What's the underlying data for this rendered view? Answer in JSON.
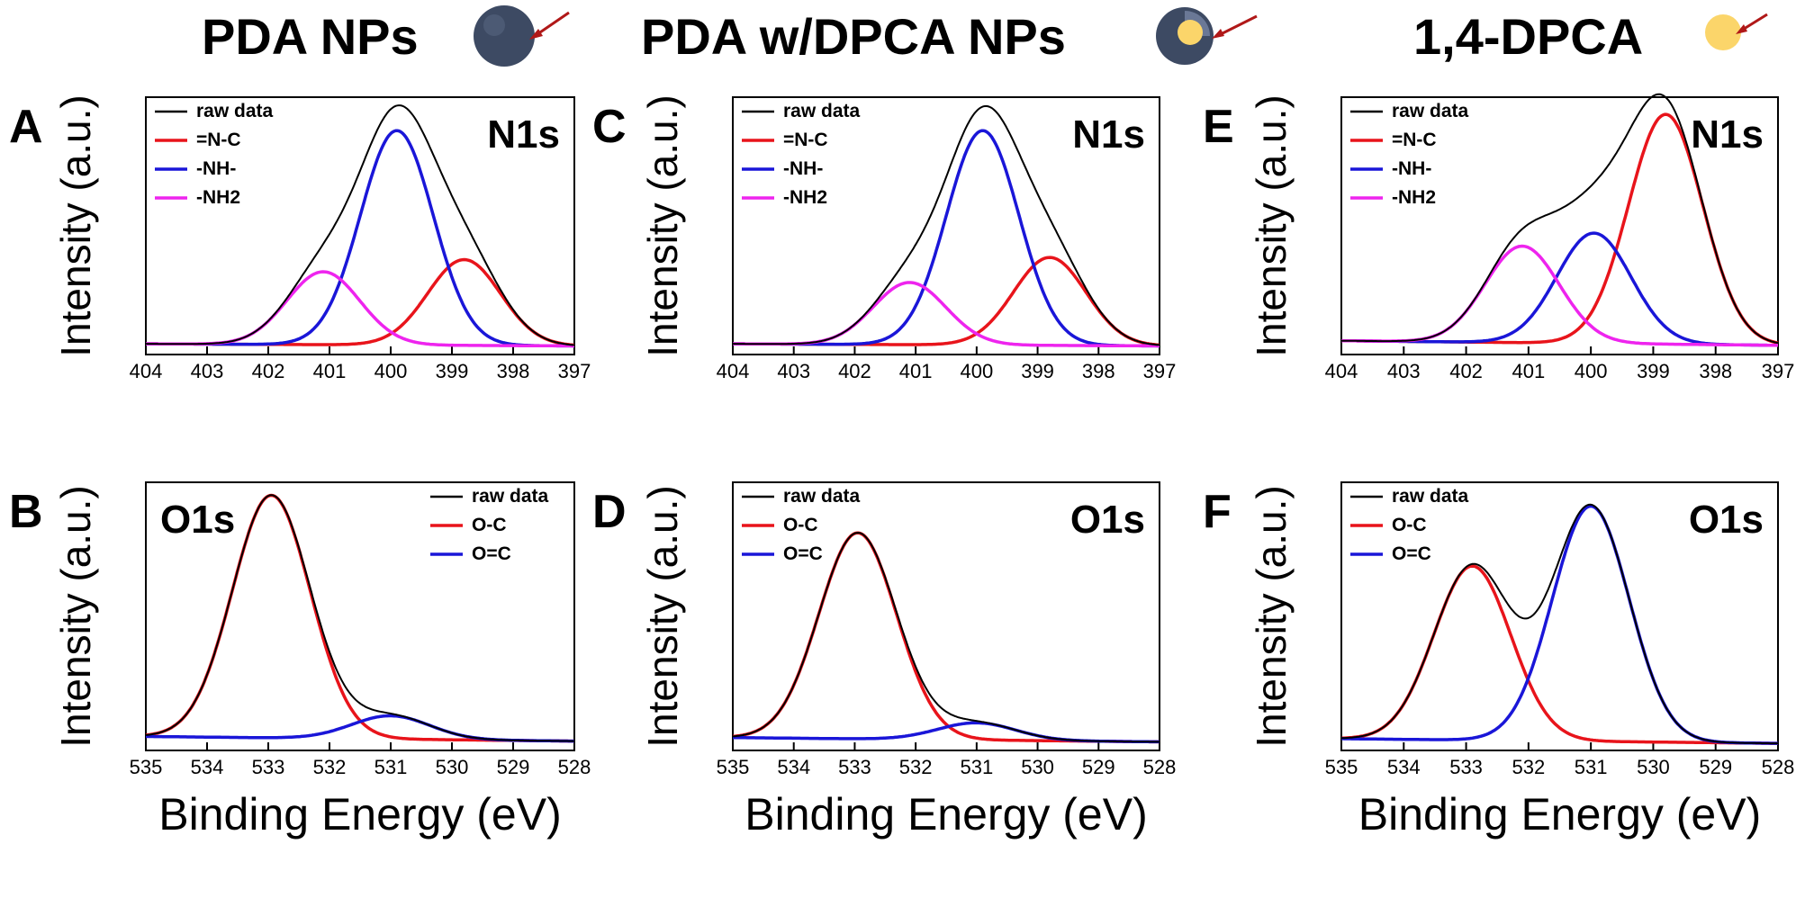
{
  "header": [
    {
      "label": "PDA NPs",
      "icon": "dark-sphere-icon"
    },
    {
      "label": "PDA w/DPCA NPs",
      "icon": "core-shell-sphere-icon"
    },
    {
      "label": "1,4-DPCA",
      "icon": "yellow-sphere-icon"
    }
  ],
  "colors": {
    "raw": "#000000",
    "red": "#e8141b",
    "blue": "#1a16d8",
    "magenta": "#ee24ee",
    "dark_sphere": "#3d4a63",
    "yellow_sphere": "#fbd56a",
    "arrow": "#b01818"
  },
  "chart_data": [
    {
      "panel": "A",
      "type": "line",
      "title": "N1s",
      "xlabel": "",
      "ylabel": "Intensity (a.u.)",
      "xlim": [
        404,
        397
      ],
      "ylim": [
        0,
        1.2
      ],
      "x_reversed": true,
      "xticks": [
        404,
        403,
        402,
        401,
        400,
        399,
        398,
        397
      ],
      "legend": {
        "position": "top-left",
        "entries": [
          "raw data",
          "=N-C",
          "-NH-",
          "-NH2"
        ]
      },
      "baseline": [
        0.05,
        0.04
      ],
      "series": [
        {
          "name": "=N-C",
          "color_key": "red",
          "peaks": [
            {
              "center": 398.8,
              "height": 0.4,
              "fwhm": 1.4
            }
          ]
        },
        {
          "name": "-NH-",
          "color_key": "blue",
          "peaks": [
            {
              "center": 399.9,
              "height": 1.0,
              "fwhm": 1.4
            }
          ]
        },
        {
          "name": "-NH2",
          "color_key": "magenta",
          "peaks": [
            {
              "center": 401.1,
              "height": 0.34,
              "fwhm": 1.4
            }
          ]
        }
      ]
    },
    {
      "panel": "B",
      "type": "line",
      "title": "O1s",
      "xlabel": "Binding Energy (eV)",
      "ylabel": "Intensity (a.u.)",
      "xlim": [
        535,
        528
      ],
      "ylim": [
        0,
        1.15
      ],
      "x_reversed": true,
      "xticks": [
        535,
        534,
        533,
        532,
        531,
        530,
        529,
        528
      ],
      "legend": {
        "position": "top-right",
        "entries": [
          "raw data",
          "O-C",
          "O=C"
        ]
      },
      "baseline": [
        0.06,
        0.04
      ],
      "series": [
        {
          "name": "O-C",
          "color_key": "red",
          "peaks": [
            {
              "center": 532.95,
              "height": 1.04,
              "fwhm": 1.5
            }
          ]
        },
        {
          "name": "O=C",
          "color_key": "blue",
          "peaks": [
            {
              "center": 531.0,
              "height": 0.1,
              "fwhm": 1.5
            }
          ]
        }
      ]
    },
    {
      "panel": "C",
      "type": "line",
      "title": "N1s",
      "xlabel": "",
      "ylabel": "Intensity (a.u.)",
      "xlim": [
        404,
        397
      ],
      "ylim": [
        0,
        1.2
      ],
      "x_reversed": true,
      "xticks": [
        404,
        403,
        402,
        401,
        400,
        399,
        398,
        397
      ],
      "legend": {
        "position": "top-left",
        "entries": [
          "raw data",
          "=N-C",
          "-NH-",
          "-NH2"
        ]
      },
      "baseline": [
        0.05,
        0.04
      ],
      "series": [
        {
          "name": "=N-C",
          "color_key": "red",
          "peaks": [
            {
              "center": 398.8,
              "height": 0.41,
              "fwhm": 1.4
            }
          ]
        },
        {
          "name": "-NH-",
          "color_key": "blue",
          "peaks": [
            {
              "center": 399.9,
              "height": 1.0,
              "fwhm": 1.4
            }
          ]
        },
        {
          "name": "-NH2",
          "color_key": "magenta",
          "peaks": [
            {
              "center": 401.1,
              "height": 0.29,
              "fwhm": 1.4
            }
          ]
        }
      ]
    },
    {
      "panel": "D",
      "type": "line",
      "title": "O1s",
      "xlabel": "Binding Energy (eV)",
      "ylabel": "Intensity (a.u.)",
      "xlim": [
        535,
        528
      ],
      "ylim": [
        0,
        1.25
      ],
      "x_reversed": true,
      "xticks": [
        535,
        534,
        533,
        532,
        531,
        530,
        529,
        528
      ],
      "legend": {
        "position": "top-left",
        "entries": [
          "raw data",
          "O-C",
          "O=C"
        ]
      },
      "baseline": [
        0.06,
        0.04
      ],
      "series": [
        {
          "name": "O-C",
          "color_key": "red",
          "peaks": [
            {
              "center": 532.95,
              "height": 0.96,
              "fwhm": 1.5
            }
          ]
        },
        {
          "name": "O=C",
          "color_key": "blue",
          "peaks": [
            {
              "center": 531.0,
              "height": 0.08,
              "fwhm": 1.5
            }
          ]
        }
      ]
    },
    {
      "panel": "E",
      "type": "line",
      "title": "N1s",
      "xlabel": "",
      "ylabel": "Intensity (a.u.)",
      "xlim": [
        404,
        397
      ],
      "ylim": [
        0,
        1.12
      ],
      "x_reversed": true,
      "xticks": [
        404,
        403,
        402,
        401,
        400,
        399,
        398,
        397
      ],
      "legend": {
        "position": "top-left",
        "entries": [
          "raw data",
          "=N-C",
          "-NH-",
          "-NH2"
        ]
      },
      "baseline": [
        0.06,
        0.04
      ],
      "series": [
        {
          "name": "=N-C",
          "color_key": "red",
          "peaks": [
            {
              "center": 398.8,
              "height": 1.0,
              "fwhm": 1.4
            }
          ]
        },
        {
          "name": "-NH-",
          "color_key": "blue",
          "peaks": [
            {
              "center": 399.95,
              "height": 0.48,
              "fwhm": 1.4
            }
          ]
        },
        {
          "name": "-NH2",
          "color_key": "magenta",
          "peaks": [
            {
              "center": 401.1,
              "height": 0.42,
              "fwhm": 1.4
            }
          ]
        }
      ]
    },
    {
      "panel": "F",
      "type": "line",
      "title": "O1s",
      "xlabel": "Binding Energy (eV)",
      "ylabel": "Intensity (a.u.)",
      "xlim": [
        535,
        528
      ],
      "ylim": [
        0,
        1.14
      ],
      "x_reversed": true,
      "xticks": [
        535,
        534,
        533,
        532,
        531,
        530,
        529,
        528
      ],
      "legend": {
        "position": "top-left",
        "entries": [
          "raw data",
          "O-C",
          "O=C"
        ]
      },
      "baseline": [
        0.05,
        0.03
      ],
      "series": [
        {
          "name": "O-C",
          "color_key": "red",
          "peaks": [
            {
              "center": 532.9,
              "height": 0.74,
              "fwhm": 1.45
            }
          ]
        },
        {
          "name": "O=C",
          "color_key": "blue",
          "peaks": [
            {
              "center": 531.0,
              "height": 1.0,
              "fwhm": 1.45
            }
          ]
        }
      ]
    }
  ]
}
